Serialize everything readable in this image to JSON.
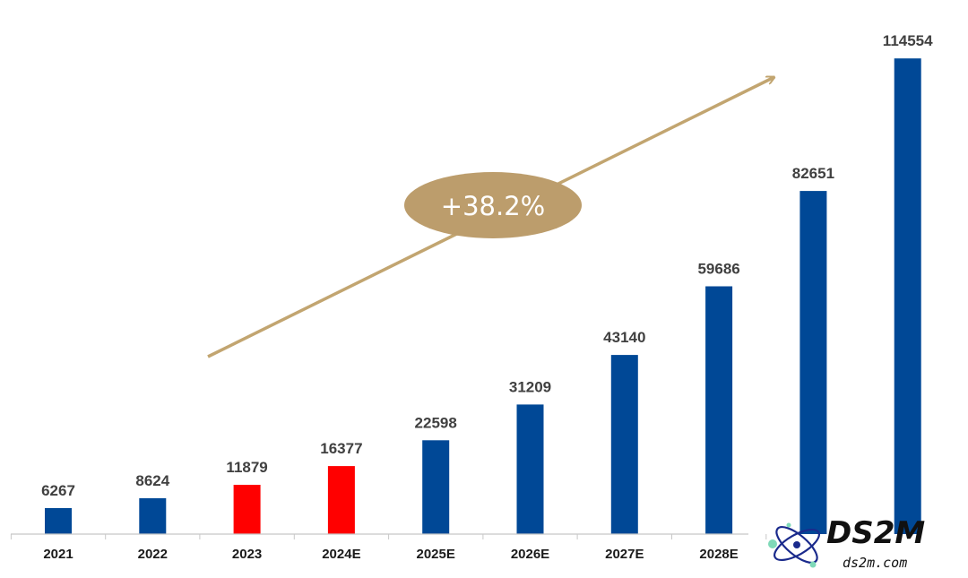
{
  "chart_data": {
    "type": "bar",
    "categories": [
      "2021",
      "2022",
      "2023",
      "2024E",
      "2025E",
      "2026E",
      "2027E",
      "2028E",
      "",
      ""
    ],
    "values": [
      6267,
      8624,
      11879,
      16377,
      22598,
      31209,
      43140,
      59686,
      82651,
      114554
    ],
    "value_labels": [
      "6267",
      "8624",
      "11879",
      "16377",
      "22598",
      "31209",
      "43140",
      "59686",
      "82651",
      "114554"
    ],
    "bar_colors": [
      "#004896",
      "#004896",
      "#ff0000",
      "#ff0000",
      "#004896",
      "#004896",
      "#004896",
      "#004896",
      "#004896",
      "#004896"
    ],
    "ylim": [
      0,
      120000
    ],
    "grid": false,
    "legend": "none",
    "annotation": {
      "growth_label": "+38.2%",
      "arrow_color": "#c2a570",
      "badge_color": "#bc9d6c"
    }
  },
  "watermark": {
    "brand": "DS2M",
    "url": "ds2m.com"
  },
  "colors": {
    "primary_bar": "#004896",
    "highlight_bar": "#ff0000",
    "axis": "#c8c8c8"
  }
}
